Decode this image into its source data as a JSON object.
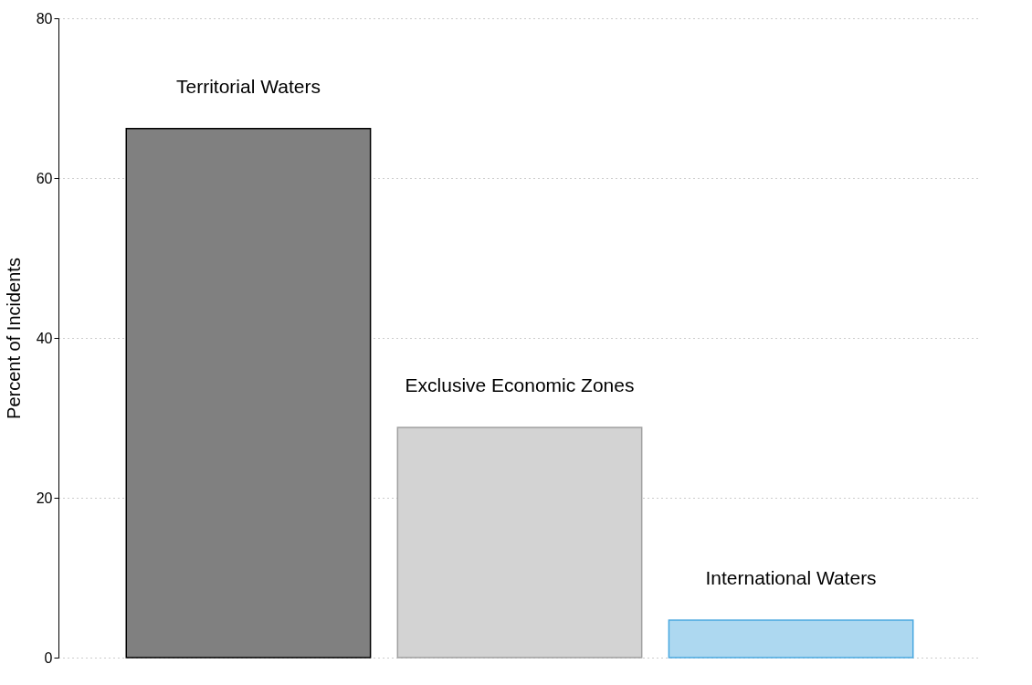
{
  "chart_data": {
    "type": "bar",
    "ylabel": "Percent of Incidents",
    "categories": [
      "Territorial Waters",
      "Exclusive Economic Zones",
      "International Waters"
    ],
    "values": [
      66.2,
      28.8,
      4.7
    ],
    "colors": [
      "#808080",
      "#d3d3d3",
      "#add8f0"
    ],
    "ylim": [
      0,
      80
    ],
    "yticks": [
      0,
      20,
      40,
      60,
      80
    ],
    "grid": "y",
    "tick_labels": "y"
  }
}
